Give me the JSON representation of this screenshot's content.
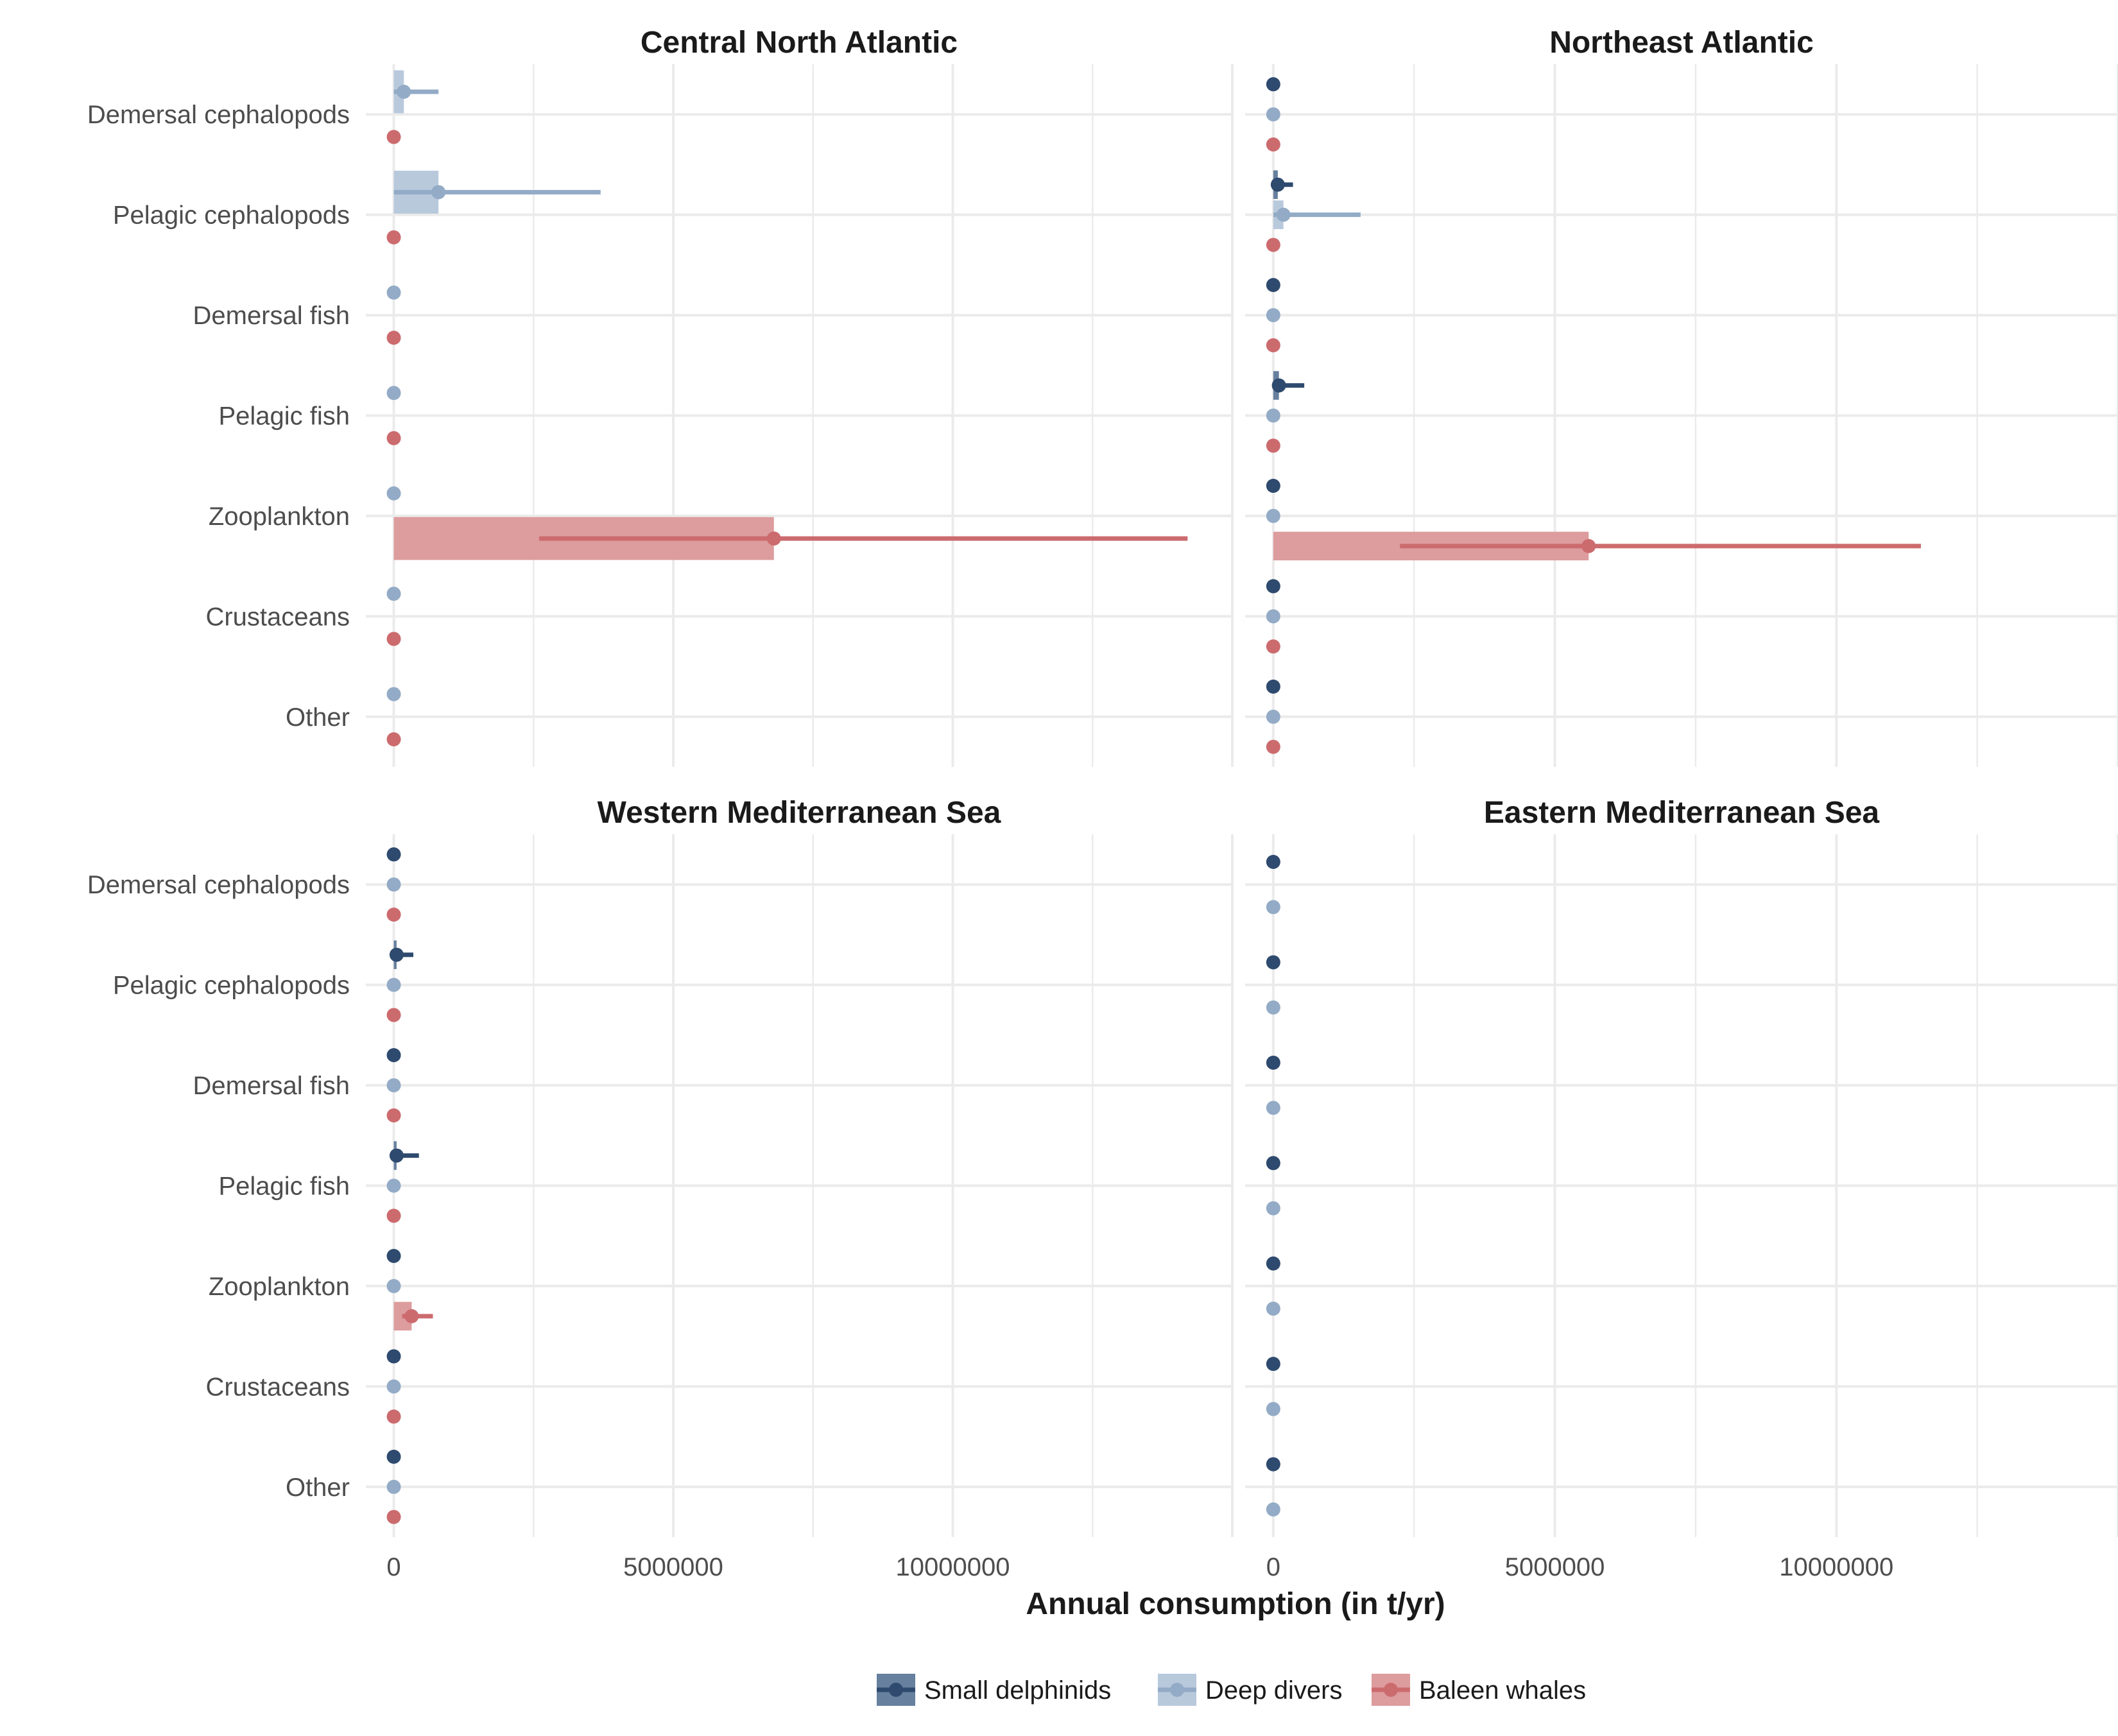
{
  "chart_data": {
    "type": "bar",
    "xlabel": "Annual consumption (in t/yr)",
    "ylabel": "",
    "xlim": [
      -500000,
      15000000
    ],
    "xticks": [
      0,
      5000000,
      10000000
    ],
    "xtick_labels": [
      "0",
      "5000000",
      "10000000"
    ],
    "grid": true,
    "legend_position": "bottom",
    "categories": [
      "Demersal cephalopods",
      "Pelagic cephalopods",
      "Demersal fish",
      "Pelagic fish",
      "Zooplankton",
      "Crustaceans",
      "Other"
    ],
    "groups": [
      {
        "name": "Small delphinids",
        "color": "#2e4a6e",
        "bar_color": "#66809e"
      },
      {
        "name": "Deep divers",
        "color": "#93abc6",
        "bar_color": "#b8c9dc"
      },
      {
        "name": "Baleen whales",
        "color": "#cc6b6e",
        "bar_color": "#dd9c9d"
      }
    ],
    "panels": [
      {
        "title": "Central North Atlantic",
        "groups_present": [
          "Deep divers",
          "Baleen whales"
        ],
        "series": [
          {
            "name": "Deep divers",
            "values": [
              180000,
              800000,
              0,
              0,
              0,
              0,
              0
            ],
            "lower": [
              0,
              0,
              0,
              0,
              0,
              0,
              0
            ],
            "upper": [
              800000,
              3700000,
              0,
              0,
              0,
              0,
              0
            ]
          },
          {
            "name": "Baleen whales",
            "values": [
              0,
              0,
              0,
              0,
              6800000,
              0,
              0
            ],
            "lower": [
              0,
              0,
              0,
              0,
              2600000,
              0,
              0
            ],
            "upper": [
              0,
              0,
              0,
              0,
              14200000,
              0,
              0
            ]
          }
        ]
      },
      {
        "title": "Northeast Atlantic",
        "groups_present": [
          "Small delphinids",
          "Deep divers",
          "Baleen whales"
        ],
        "series": [
          {
            "name": "Small delphinids",
            "values": [
              0,
              80000,
              0,
              100000,
              0,
              0,
              0
            ],
            "lower": [
              0,
              0,
              0,
              0,
              0,
              0,
              0
            ],
            "upper": [
              0,
              350000,
              0,
              550000,
              0,
              0,
              0
            ]
          },
          {
            "name": "Deep divers",
            "values": [
              0,
              180000,
              0,
              0,
              0,
              0,
              0
            ],
            "lower": [
              0,
              0,
              0,
              0,
              0,
              0,
              0
            ],
            "upper": [
              0,
              1550000,
              0,
              0,
              0,
              0,
              0
            ]
          },
          {
            "name": "Baleen whales",
            "values": [
              0,
              0,
              0,
              0,
              5600000,
              0,
              0
            ],
            "lower": [
              0,
              0,
              0,
              0,
              2250000,
              0,
              0
            ],
            "upper": [
              0,
              0,
              0,
              0,
              11500000,
              0,
              0
            ]
          }
        ]
      },
      {
        "title": "Western Mediterranean Sea",
        "groups_present": [
          "Small delphinids",
          "Deep divers",
          "Baleen whales"
        ],
        "series": [
          {
            "name": "Small delphinids",
            "values": [
              0,
              50000,
              0,
              50000,
              0,
              0,
              0
            ],
            "lower": [
              0,
              0,
              0,
              0,
              0,
              0,
              0
            ],
            "upper": [
              0,
              350000,
              0,
              450000,
              0,
              0,
              0
            ]
          },
          {
            "name": "Deep divers",
            "values": [
              0,
              0,
              0,
              0,
              0,
              0,
              0
            ],
            "lower": [
              0,
              0,
              0,
              0,
              0,
              0,
              0
            ],
            "upper": [
              0,
              0,
              0,
              0,
              0,
              0,
              0
            ]
          },
          {
            "name": "Baleen whales",
            "values": [
              0,
              0,
              0,
              0,
              320000,
              0,
              0
            ],
            "lower": [
              0,
              0,
              0,
              0,
              150000,
              0,
              0
            ],
            "upper": [
              0,
              0,
              0,
              0,
              700000,
              0,
              0
            ]
          }
        ]
      },
      {
        "title": "Eastern Mediterranean Sea",
        "groups_present": [
          "Small delphinids",
          "Deep divers"
        ],
        "series": [
          {
            "name": "Small delphinids",
            "values": [
              0,
              0,
              0,
              0,
              0,
              0,
              0
            ],
            "lower": [
              0,
              0,
              0,
              0,
              0,
              0,
              0
            ],
            "upper": [
              0,
              0,
              0,
              0,
              0,
              0,
              0
            ]
          },
          {
            "name": "Deep divers",
            "values": [
              0,
              0,
              0,
              0,
              0,
              0,
              0
            ],
            "lower": [
              0,
              0,
              0,
              0,
              0,
              0,
              0
            ],
            "upper": [
              0,
              0,
              0,
              0,
              0,
              0,
              0
            ]
          }
        ]
      }
    ]
  }
}
